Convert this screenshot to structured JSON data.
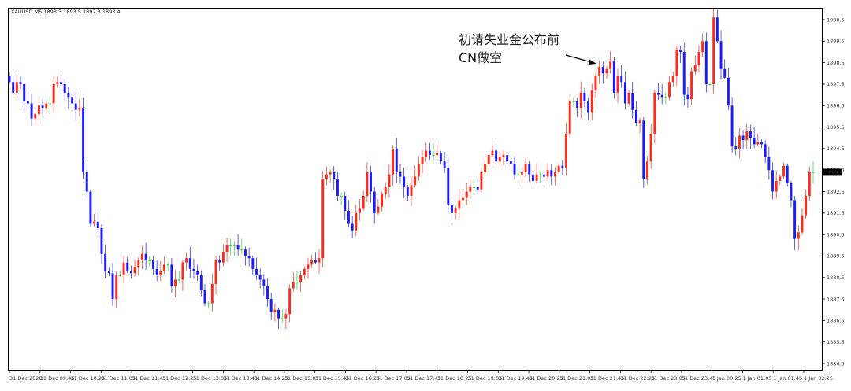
{
  "header": {
    "symbol_line": "XAUUSD,M5  1893.3 1893.5 1892.8 1893.4"
  },
  "annotation": {
    "line1": "初请失业金公布前",
    "line2": "CN做空"
  },
  "colors": {
    "up": "#ff2a1a",
    "down": "#1a1aff",
    "doji": "#2ecc40",
    "axis": "#000000",
    "bg": "#ffffff",
    "current_bg": "#000000",
    "current_text": "#ffffff"
  },
  "chart_data": {
    "type": "candlestick",
    "title": "XAUUSD,M5",
    "ylim": [
      1884.0,
      1901.0
    ],
    "yticks": [
      "1900.5",
      "1899.5",
      "1898.5",
      "1897.5",
      "1896.5",
      "1895.5",
      "1894.5",
      "1893.5",
      "1892.5",
      "1891.5",
      "1890.5",
      "1889.5",
      "1888.5",
      "1887.5",
      "1886.5",
      "1885.5",
      "1884.5"
    ],
    "current_price": "1893.4",
    "x_time_labels": [
      "31 Dec 2020",
      "31 Dec 09:45",
      "31 Dec 10:25",
      "31 Dec 11:05",
      "31 Dec 11:45",
      "31 Dec 12:25",
      "31 Dec 13:05",
      "31 Dec 13:45",
      "31 Dec 14:25",
      "31 Dec 15:05",
      "31 Dec 15:45",
      "31 Dec 16:25",
      "31 Dec 17:05",
      "31 Dec 17:45",
      "31 Dec 18:25",
      "31 Dec 19:05",
      "31 Dec 19:45",
      "31 Dec 20:25",
      "31 Dec 21:05",
      "31 Dec 21:45",
      "31 Dec 22:25",
      "31 Dec 23:05",
      "31 Dec 23:45",
      "1 Jan 00:25",
      "1 Jan 01:05",
      "1 Jan 01:45",
      "1 Jan 02:25"
    ],
    "closes": [
      1897.6,
      1897.1,
      1897.6,
      1897.5,
      1896.7,
      1896.6,
      1895.9,
      1896.1,
      1896.5,
      1896.4,
      1896.6,
      1896.6,
      1897.5,
      1897.6,
      1897.5,
      1897.1,
      1896.9,
      1896.6,
      1896.3,
      1896.4,
      1893.4,
      1892.5,
      1891.0,
      1891.1,
      1890.8,
      1889.6,
      1888.8,
      1888.7,
      1887.5,
      1888.6,
      1888.6,
      1889.2,
      1888.8,
      1888.7,
      1889.0,
      1889.3,
      1889.6,
      1889.3,
      1889.3,
      1888.9,
      1888.6,
      1888.8,
      1889.1,
      1889.1,
      1888.1,
      1888.4,
      1888.4,
      1889.2,
      1889.4,
      1888.9,
      1888.8,
      1888.6,
      1887.9,
      1887.3,
      1887.3,
      1888.2,
      1889.3,
      1889.2,
      1889.7,
      1890.0,
      1890.0,
      1890.0,
      1889.8,
      1889.8,
      1889.5,
      1889.4,
      1888.9,
      1888.6,
      1888.4,
      1888.1,
      1887.5,
      1886.9,
      1887.0,
      1886.6,
      1886.6,
      1886.8,
      1888.0,
      1888.3,
      1888.3,
      1888.6,
      1888.9,
      1889.1,
      1889.3,
      1889.2,
      1889.4,
      1893.1,
      1893.3,
      1893.4,
      1893.1,
      1892.3,
      1892.3,
      1891.6,
      1891.0,
      1890.7,
      1891.5,
      1891.7,
      1892.3,
      1893.4,
      1892.5,
      1891.5,
      1891.8,
      1892.4,
      1892.7,
      1893.3,
      1894.5,
      1893.4,
      1893.2,
      1892.7,
      1892.3,
      1892.8,
      1893.2,
      1893.8,
      1894.1,
      1894.4,
      1894.2,
      1894.2,
      1894.3,
      1893.9,
      1893.6,
      1891.9,
      1891.5,
      1891.7,
      1892.1,
      1892.2,
      1892.5,
      1892.7,
      1892.7,
      1892.6,
      1893.4,
      1893.8,
      1894.2,
      1894.4,
      1893.9,
      1894.1,
      1894.2,
      1893.9,
      1893.8,
      1893.3,
      1893.3,
      1893.4,
      1893.8,
      1893.3,
      1893.0,
      1893.3,
      1893.3,
      1893.2,
      1893.5,
      1893.2,
      1893.4,
      1893.7,
      1893.6,
      1895.2,
      1896.7,
      1896.7,
      1896.4,
      1897.1,
      1896.7,
      1896.2,
      1897.2,
      1897.9,
      1898.3,
      1898.0,
      1898.2,
      1898.6,
      1897.1,
      1897.9,
      1897.6,
      1896.6,
      1897.1,
      1896.3,
      1895.7,
      1895.8,
      1893.1,
      1893.9,
      1895.2,
      1897.1,
      1897.0,
      1896.9,
      1896.9,
      1897.6,
      1897.9,
      1899.1,
      1899.0,
      1897.0,
      1896.8,
      1898.1,
      1898.4,
      1899.0,
      1899.5,
      1897.5,
      1897.5,
      1900.6,
      1899.5,
      1898.2,
      1897.8,
      1896.5,
      1894.6,
      1894.5,
      1895.1,
      1894.9,
      1895.3,
      1895.0,
      1894.7,
      1894.8,
      1894.7,
      1894.1,
      1893.5,
      1892.5,
      1893.0,
      1893.2,
      1893.7,
      1892.9,
      1892.1,
      1890.3,
      1890.6,
      1891.4,
      1892.3,
      1893.4,
      1893.4
    ]
  }
}
